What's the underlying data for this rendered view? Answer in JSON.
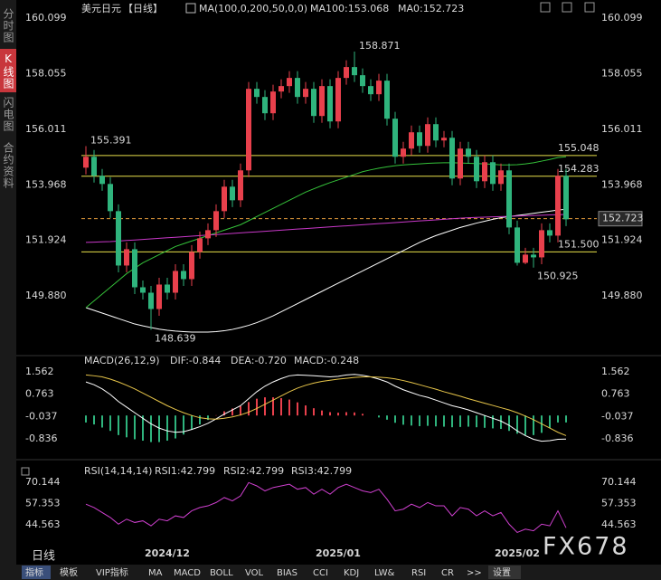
{
  "sidebar": {
    "tabs": [
      "分时图",
      "K线图",
      "闪电图",
      "合约资料"
    ]
  },
  "chart_data": [
    {
      "type": "candlestick",
      "header": [
        {
          "text": "美元日元",
          "color": "#ffffff"
        },
        {
          "text": "【日线】",
          "color": "#e8474c"
        },
        {
          "text": "MA(100,0,200,50,0,0)",
          "color": "#ffffff"
        },
        {
          "text": "MA100:153.068",
          "color": "#ffffff"
        },
        {
          "text": "MA0:152.723",
          "color": "#e8c64a"
        }
      ],
      "categories": [
        null,
        null,
        null,
        null,
        null,
        null,
        null,
        null,
        null,
        null,
        "2024/12",
        null,
        null,
        null,
        null,
        null,
        null,
        null,
        null,
        null,
        null,
        null,
        null,
        null,
        null,
        null,
        null,
        null,
        null,
        null,
        null,
        "2025/01",
        null,
        null,
        null,
        null,
        null,
        null,
        null,
        null,
        null,
        null,
        null,
        null,
        null,
        null,
        null,
        null,
        null,
        null,
        null,
        null,
        null,
        "2025/02",
        null,
        null,
        null,
        null,
        null,
        null
      ],
      "open": [
        154.6,
        155.0,
        154.3,
        154.0,
        153.0,
        151.0,
        151.6,
        150.2,
        150.0,
        149.4,
        150.3,
        150.0,
        150.8,
        150.5,
        151.5,
        152.0,
        152.3,
        153.0,
        153.9,
        153.4,
        154.5,
        157.5,
        157.2,
        156.6,
        157.4,
        157.6,
        157.9,
        157.2,
        157.5,
        156.5,
        157.6,
        156.3,
        157.9,
        158.3,
        158.0,
        157.6,
        157.3,
        157.8,
        156.4,
        155.0,
        155.3,
        155.9,
        155.4,
        156.2,
        155.6,
        155.7,
        154.2,
        155.3,
        155.0,
        154.1,
        154.8,
        154.0,
        154.5,
        152.4,
        151.1,
        151.4,
        151.3,
        152.3,
        152.1,
        154.3
      ],
      "high": [
        155.391,
        155.25,
        154.55,
        154.25,
        153.25,
        151.85,
        151.85,
        150.45,
        150.25,
        150.55,
        150.55,
        151.05,
        151.05,
        151.75,
        152.25,
        152.55,
        153.25,
        154.15,
        154.15,
        154.75,
        157.75,
        157.75,
        157.45,
        157.65,
        157.85,
        158.15,
        158.15,
        157.75,
        157.75,
        157.85,
        157.85,
        158.15,
        158.55,
        158.871,
        158.25,
        157.85,
        158.05,
        158.05,
        156.65,
        155.55,
        156.15,
        156.15,
        156.45,
        156.45,
        155.95,
        155.95,
        155.55,
        155.55,
        155.25,
        155.05,
        155.05,
        154.75,
        154.75,
        152.65,
        151.65,
        151.65,
        152.55,
        152.55,
        154.55,
        154.55
      ],
      "low": [
        154.35,
        154.05,
        153.75,
        152.75,
        150.75,
        150.75,
        149.95,
        149.75,
        148.639,
        149.15,
        149.75,
        149.75,
        150.25,
        150.25,
        151.25,
        151.75,
        152.05,
        152.75,
        153.15,
        153.15,
        154.25,
        156.95,
        156.35,
        156.35,
        157.15,
        157.35,
        156.95,
        156.95,
        156.25,
        156.25,
        156.05,
        156.05,
        157.65,
        157.75,
        157.35,
        157.05,
        157.05,
        156.15,
        154.75,
        154.75,
        155.05,
        155.15,
        155.15,
        155.35,
        155.35,
        153.95,
        153.95,
        154.75,
        153.85,
        153.85,
        153.75,
        153.75,
        152.15,
        151.0,
        151.05,
        150.925,
        151.05,
        151.85,
        151.85,
        152.45
      ],
      "close": [
        155.0,
        154.3,
        154.0,
        153.0,
        151.0,
        151.6,
        150.2,
        150.0,
        149.4,
        150.3,
        150.0,
        150.8,
        150.5,
        151.5,
        152.0,
        152.3,
        153.0,
        153.9,
        153.4,
        154.5,
        157.5,
        157.2,
        156.6,
        157.4,
        157.6,
        157.9,
        157.2,
        157.5,
        156.5,
        157.6,
        156.3,
        157.9,
        158.3,
        158.0,
        157.6,
        157.3,
        157.8,
        156.4,
        155.0,
        155.3,
        155.9,
        155.4,
        156.2,
        155.6,
        155.7,
        154.2,
        155.3,
        155.0,
        154.1,
        154.8,
        154.0,
        154.5,
        152.4,
        151.1,
        151.4,
        151.3,
        152.3,
        152.1,
        154.3,
        152.7
      ],
      "up_color": "#e8404c",
      "down_color": "#2fb47d",
      "lines": [
        {
          "color": "#ffffff",
          "values": [
            149.45,
            149.35,
            149.25,
            149.15,
            149.05,
            148.95,
            148.85,
            148.78,
            148.72,
            148.66,
            148.62,
            148.59,
            148.57,
            148.55,
            148.55,
            148.55,
            148.57,
            148.6,
            148.65,
            148.72,
            148.8,
            148.9,
            149.02,
            149.15,
            149.3,
            149.45,
            149.6,
            149.75,
            149.9,
            150.05,
            150.2,
            150.35,
            150.5,
            150.65,
            150.8,
            150.95,
            151.1,
            151.25,
            151.4,
            151.55,
            151.7,
            151.85,
            151.98,
            152.1,
            152.2,
            152.3,
            152.4,
            152.48,
            152.56,
            152.63,
            152.7,
            152.76,
            152.8,
            152.84,
            152.88,
            152.92,
            152.96,
            153.0,
            153.04,
            153.068
          ]
        },
        {
          "color": "#35c23a",
          "values": [
            149.45,
            149.7,
            149.95,
            150.2,
            150.45,
            150.7,
            150.9,
            151.1,
            151.25,
            151.4,
            151.55,
            151.7,
            151.8,
            151.9,
            152.0,
            152.1,
            152.2,
            152.3,
            152.4,
            152.5,
            152.65,
            152.8,
            152.95,
            153.1,
            153.25,
            153.4,
            153.55,
            153.7,
            153.82,
            153.94,
            154.05,
            154.15,
            154.25,
            154.35,
            154.45,
            154.52,
            154.58,
            154.63,
            154.67,
            154.7,
            154.72,
            154.74,
            154.76,
            154.77,
            154.78,
            154.78,
            154.77,
            154.76,
            154.75,
            154.74,
            154.72,
            154.7,
            154.7,
            154.71,
            154.74,
            154.78,
            154.84,
            154.9,
            154.97,
            155.0
          ]
        },
        {
          "color": "#c838c8",
          "values": [
            151.85,
            151.86,
            151.87,
            151.88,
            151.9,
            151.92,
            151.94,
            151.96,
            151.98,
            152.0,
            152.02,
            152.04,
            152.06,
            152.08,
            152.1,
            152.12,
            152.14,
            152.16,
            152.18,
            152.2,
            152.22,
            152.24,
            152.26,
            152.28,
            152.3,
            152.32,
            152.34,
            152.36,
            152.38,
            152.4,
            152.42,
            152.44,
            152.46,
            152.48,
            152.5,
            152.52,
            152.54,
            152.56,
            152.58,
            152.6,
            152.62,
            152.64,
            152.66,
            152.68,
            152.7,
            152.72,
            152.74,
            152.76,
            152.77,
            152.78,
            152.79,
            152.8,
            152.81,
            152.82,
            152.83,
            152.84,
            152.85,
            152.86,
            152.87,
            152.88
          ]
        }
      ],
      "levels": [
        {
          "value": 155.048,
          "color": "#e8e04a"
        },
        {
          "value": 154.283,
          "color": "#e8e04a"
        },
        {
          "value": 151.5,
          "label": "151.500",
          "color": "#e8e04a"
        },
        {
          "value": 152.723,
          "color": "#e39b3c",
          "style": "dashed"
        }
      ],
      "high_labels": [
        155.391,
        158.871
      ],
      "high_label_color": "#e8474c",
      "low_labels": [
        148.639,
        150.925
      ],
      "low_label_color": "#3dbd86",
      "ylim": [
        147.72,
        160.6
      ],
      "yticks": [
        160.099,
        158.055,
        156.011,
        153.968,
        151.924,
        {
          "value": 149.88,
          "label": "149.880"
        }
      ],
      "period_label": "日线"
    },
    {
      "type": "macd",
      "header": [
        {
          "text": "MACD(26,12,9)",
          "color": "#ffffff"
        },
        {
          "text": "DIF:-0.844",
          "color": "#ffffff"
        },
        {
          "text": "DEA:-0.720",
          "color": "#e8c64a"
        },
        {
          "text": "MACD:-0.248",
          "color": "#d040d0"
        }
      ],
      "series": [
        {
          "color": "#ffffff",
          "values": [
            1.2,
            1.1,
            0.95,
            0.75,
            0.5,
            0.3,
            0.1,
            -0.1,
            -0.3,
            -0.45,
            -0.55,
            -0.6,
            -0.58,
            -0.5,
            -0.4,
            -0.28,
            -0.12,
            0.05,
            0.2,
            0.35,
            0.6,
            0.85,
            1.05,
            1.2,
            1.32,
            1.42,
            1.45,
            1.44,
            1.42,
            1.4,
            1.38,
            1.4,
            1.45,
            1.47,
            1.44,
            1.38,
            1.3,
            1.2,
            1.05,
            0.92,
            0.82,
            0.72,
            0.65,
            0.55,
            0.45,
            0.35,
            0.28,
            0.2,
            0.1,
            0.0,
            -0.1,
            -0.2,
            -0.35,
            -0.55,
            -0.72,
            -0.85,
            -0.92,
            -0.9,
            -0.85,
            -0.844
          ]
        },
        {
          "color": "#e8c64a",
          "values": [
            1.45,
            1.42,
            1.38,
            1.3,
            1.2,
            1.08,
            0.95,
            0.8,
            0.65,
            0.5,
            0.35,
            0.22,
            0.1,
            0.0,
            -0.08,
            -0.12,
            -0.13,
            -0.1,
            -0.05,
            0.02,
            0.12,
            0.25,
            0.4,
            0.55,
            0.7,
            0.85,
            0.98,
            1.08,
            1.16,
            1.22,
            1.26,
            1.3,
            1.33,
            1.36,
            1.38,
            1.38,
            1.37,
            1.35,
            1.31,
            1.25,
            1.18,
            1.1,
            1.02,
            0.94,
            0.85,
            0.77,
            0.69,
            0.6,
            0.52,
            0.44,
            0.36,
            0.28,
            0.2,
            0.1,
            -0.02,
            -0.15,
            -0.3,
            -0.45,
            -0.6,
            -0.72
          ]
        }
      ],
      "histogram": {
        "up_color": "#e8404c",
        "down_color": "#2fb47d",
        "values": [
          -0.25,
          -0.32,
          -0.43,
          -0.55,
          -0.7,
          -0.78,
          -0.85,
          -0.9,
          -0.95,
          -0.95,
          -0.9,
          -0.82,
          -0.68,
          -0.5,
          -0.32,
          -0.16,
          0.01,
          0.15,
          0.25,
          0.33,
          0.48,
          0.6,
          0.65,
          0.65,
          0.62,
          0.57,
          0.47,
          0.36,
          0.26,
          0.18,
          0.12,
          0.1,
          0.12,
          0.11,
          0.06,
          0.0,
          -0.07,
          -0.15,
          -0.26,
          -0.33,
          -0.36,
          -0.38,
          -0.37,
          -0.39,
          -0.4,
          -0.42,
          -0.41,
          -0.4,
          -0.42,
          -0.44,
          -0.46,
          -0.48,
          -0.55,
          -0.65,
          -0.7,
          -0.7,
          -0.62,
          -0.45,
          -0.25,
          -0.248
        ]
      },
      "ylim": [
        -1.32,
        1.98
      ],
      "yticks": [
        1.562,
        0.763,
        -0.037,
        -0.836
      ]
    },
    {
      "type": "line",
      "header": [
        {
          "text": "RSI(14,14,14)",
          "color": "#ffffff"
        },
        {
          "text": "RSI1:42.799",
          "color": "#ffffff"
        },
        {
          "text": "RSI2:42.799",
          "color": "#e8c64a"
        },
        {
          "text": "RSI3:42.799",
          "color": "#d040d0"
        }
      ],
      "color": "#d040d0",
      "values": [
        57,
        55,
        52,
        49,
        45,
        48,
        46,
        47,
        44,
        48,
        47,
        50,
        49,
        53,
        55,
        56,
        58,
        61,
        59,
        62,
        70,
        68,
        65,
        67,
        68,
        69,
        66,
        67,
        63,
        66,
        63,
        67,
        69,
        67,
        65,
        64,
        66,
        60,
        53,
        54,
        57,
        55,
        58,
        56,
        56,
        50,
        55,
        54,
        50,
        53,
        50,
        52,
        45,
        40,
        42,
        41,
        45,
        44,
        53,
        42.799
      ],
      "ylim": [
        34.8,
        72.9
      ],
      "yticks": [
        70.144,
        57.353,
        44.563
      ]
    }
  ],
  "watermark": "FX678",
  "toolbar": {
    "items": [
      "指标",
      "模板",
      "VIP指标",
      "MA",
      "MACD",
      "BOLL",
      "VOL",
      "BIAS",
      "CCI",
      "KDJ",
      "LW&",
      "RSI",
      "CR",
      ">>",
      "设置"
    ]
  }
}
